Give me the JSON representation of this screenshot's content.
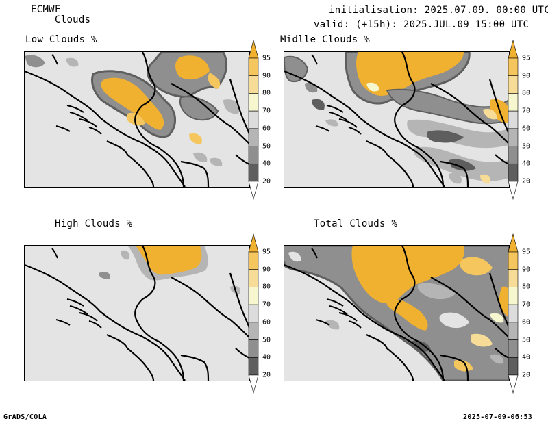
{
  "header": {
    "model": "ECMWF",
    "product": "Clouds",
    "init": "initialisation: 2025.07.09. 00:00 UTC",
    "valid": "valid: (+15h): 2025.JUL.09 15:00 UTC"
  },
  "panels": {
    "low": {
      "title": "Low Clouds %"
    },
    "mid": {
      "title": "Midlle Clouds %"
    },
    "high": {
      "title": "High Clouds %"
    },
    "total": {
      "title": "Total Clouds %"
    }
  },
  "colorbar": {
    "levels": [
      "95",
      "90",
      "80",
      "70",
      "60",
      "50",
      "40",
      "20"
    ],
    "colors": {
      "c95": "#f0b030",
      "c90": "#f5c65e",
      "c80": "#f7dc98",
      "c70": "#f7f7cf",
      "c60": "#dcdcdc",
      "c50": "#b5b5b5",
      "c40": "#8f8f8f",
      "c20": "#5e5e5e"
    }
  },
  "footer": {
    "left": "GrADS/COLA",
    "right": "2025-07-09-06:53"
  }
}
